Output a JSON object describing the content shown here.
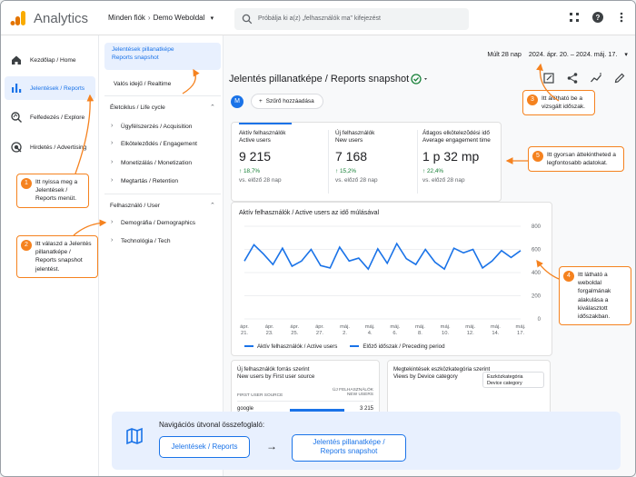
{
  "app": {
    "title": "Analytics",
    "account": "Minden fiók",
    "property": "Demo Weboldal"
  },
  "search": {
    "placeholder": "Próbálja ki a(z) „felhasználók ma” kifejezést"
  },
  "rail": [
    {
      "label": "Kezdőlap / Home",
      "icon": "home-icon"
    },
    {
      "label": "Jelentések / Reports",
      "icon": "bar-chart-icon"
    },
    {
      "label": "Felfedezés / Explore",
      "icon": "explore-icon"
    },
    {
      "label": "Hirdetés / Advertising",
      "icon": "ads-icon"
    }
  ],
  "subnav": {
    "active_line1": "Jelentések pillanatképe",
    "active_line2": "Reports snapshot",
    "realtime": "Valós idejű / Realtime",
    "lifecycle": "Életciklus / Life cycle",
    "acquisition": "Ügyfélszerzés / Acquisition",
    "engagement": "Elköteleződés / Engagement",
    "monetization": "Monetizálás / Monetization",
    "retention": "Megtartás / Retention",
    "user": "Felhasználó / User",
    "demographics": "Demográfia / Demographics",
    "tech": "Technológia / Tech"
  },
  "header": {
    "date_label": "Múlt 28 nap",
    "date_range": "2024. ápr. 20. – 2024. máj. 17.",
    "report_title": "Jelentés pillanatképe / Reports snapshot",
    "avatar": "M",
    "filter": "Szűrő hozzáadása"
  },
  "kpis": [
    {
      "label1": "Aktív felhasználók",
      "label2": "Active users",
      "value": "9 215",
      "delta": "↑ 18,7%",
      "prev": "vs. előző 28 nap"
    },
    {
      "label1": "Új felhasználók",
      "label2": "New users",
      "value": "7 168",
      "delta": "↑ 15,2%",
      "prev": "vs. előző 28 nap"
    },
    {
      "label1": "Átlagos elkötelezõdési idő",
      "label2": "Average engagement time",
      "value": "1 p 32 mp",
      "delta": "↑ 22,4%",
      "prev": "vs. előző 28 nap"
    }
  ],
  "chart_data": {
    "type": "line",
    "title": "Aktív felhasználók / Active users az idő múlásával",
    "x_ticks": [
      [
        "ápr.",
        "21."
      ],
      [
        "ápr.",
        "23."
      ],
      [
        "ápr.",
        "25."
      ],
      [
        "ápr.",
        "27."
      ],
      [
        "máj.",
        "2."
      ],
      [
        "máj.",
        "4."
      ],
      [
        "máj.",
        "6."
      ],
      [
        "máj.",
        "8."
      ],
      [
        "máj.",
        "10."
      ],
      [
        "máj.",
        "12."
      ],
      [
        "máj.",
        "14."
      ],
      [
        "máj.",
        "17."
      ]
    ],
    "ylim": [
      0,
      800
    ],
    "y_ticks": [
      0,
      200,
      400,
      600,
      800
    ],
    "series": [
      {
        "name": "Aktív felhasználók / Active users",
        "style": "solid",
        "values": [
          500,
          640,
          560,
          470,
          610,
          455,
          500,
          600,
          460,
          440,
          620,
          500,
          525,
          430,
          605,
          480,
          650,
          520,
          470,
          600,
          490,
          430,
          610,
          570,
          600,
          440,
          500,
          590,
          530,
          590
        ]
      },
      {
        "name": "Előző időszak / Preceding period",
        "style": "dashed",
        "values": []
      }
    ]
  },
  "table": {
    "title1": "Új felhasználók forrás szerint",
    "title2": "New users by First user source",
    "col1": "FIRST USER SOURCE",
    "col2a": "ÚJ FELHASZNÁLÓK",
    "col2b": "NEW USERS",
    "rows": [
      {
        "source": "google",
        "value": "3 215"
      }
    ]
  },
  "device": {
    "title1": "Megtekintések eszközkategória szerint",
    "title2": "Views by Device category",
    "select1": "Eszközkategória",
    "select2": "Device category"
  },
  "callouts": {
    "c1": "Itt nyissa meg a Jelentések / Reports menüt.",
    "c2": "Itt válaszd a Jelentés pillanatképe / Reports snapshot jelentést.",
    "c3": "Itt állítható be a vizsgált időszak.",
    "c4": "Itt látható a weboldal forgalmának alakulása a kiválasztott időszakban.",
    "c5": "Itt gyorsan áttekintheted a legfontosabb adatokat."
  },
  "summary": {
    "title": "Navigációs útvonal összefoglaló:",
    "step1": "Jelentések / Reports",
    "arrow": "→",
    "step2a": "Jelentés pillanatképe /",
    "step2b": "Reports snapshot"
  },
  "colors": {
    "accent": "#1a73e8",
    "callout": "#f5821f",
    "positive": "#188038"
  }
}
